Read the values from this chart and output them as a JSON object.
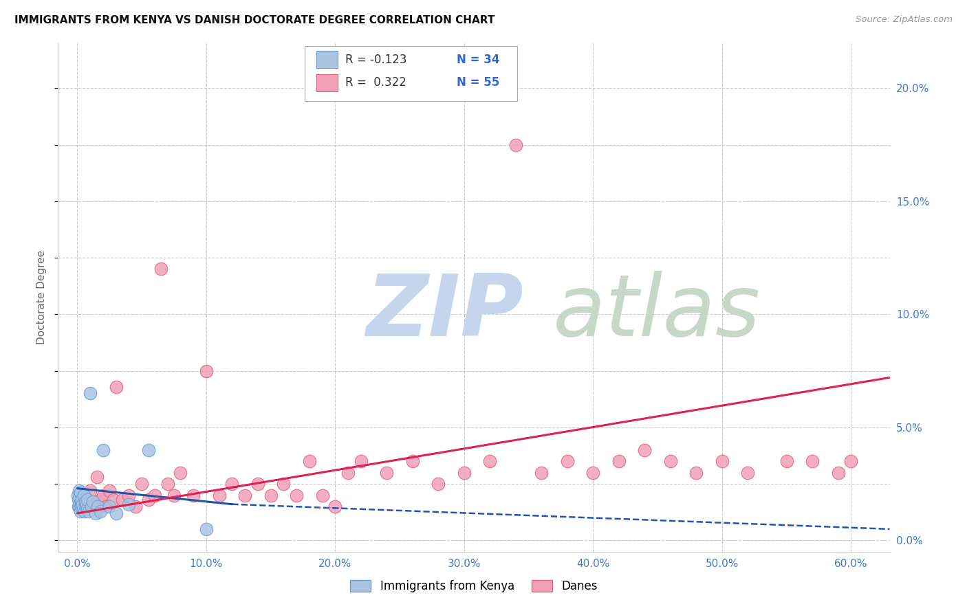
{
  "title": "IMMIGRANTS FROM KENYA VS DANISH DOCTORATE DEGREE CORRELATION CHART",
  "source": "Source: ZipAtlas.com",
  "ylabel": "Doctorate Degree",
  "xlim": [
    -1.5,
    63.0
  ],
  "ylim": [
    -0.5,
    22.0
  ],
  "xticks": [
    0,
    10,
    20,
    30,
    40,
    50,
    60
  ],
  "yticks_right": [
    0,
    5,
    10,
    15,
    20
  ],
  "legend_r1": "R = -0.123",
  "legend_n1": "N = 34",
  "legend_r2": "R =  0.322",
  "legend_n2": "N = 55",
  "kenya_color": "#aac4e0",
  "danes_color": "#f0a0b8",
  "kenya_edge": "#6a9fd8",
  "danes_edge": "#e06080",
  "trend_kenya_color": "#2255aa",
  "trend_danes_color": "#dd2255",
  "watermark_zip": "ZIP",
  "watermark_atlas": "atlas",
  "watermark_color_zip": "#c5d5ee",
  "watermark_color_atlas": "#c8d8c8",
  "kenya_x": [
    0.05,
    0.08,
    0.1,
    0.12,
    0.15,
    0.18,
    0.2,
    0.22,
    0.25,
    0.28,
    0.3,
    0.35,
    0.4,
    0.45,
    0.5,
    0.55,
    0.6,
    0.65,
    0.7,
    0.75,
    0.8,
    0.9,
    1.0,
    1.1,
    1.2,
    1.4,
    1.6,
    1.8,
    2.0,
    2.5,
    3.0,
    4.0,
    5.5,
    10.0
  ],
  "kenya_y": [
    2.0,
    1.5,
    1.8,
    2.2,
    1.6,
    1.4,
    1.9,
    1.3,
    2.1,
    1.7,
    1.5,
    1.8,
    1.6,
    1.4,
    2.0,
    1.3,
    1.7,
    1.5,
    1.6,
    1.4,
    1.8,
    1.3,
    6.5,
    1.5,
    1.7,
    1.2,
    1.5,
    1.3,
    4.0,
    1.5,
    1.2,
    1.6,
    4.0,
    0.5
  ],
  "danes_x": [
    0.2,
    0.5,
    0.8,
    1.0,
    1.2,
    1.5,
    1.8,
    2.0,
    2.2,
    2.5,
    2.8,
    3.0,
    3.5,
    4.0,
    4.5,
    5.0,
    5.5,
    6.0,
    6.5,
    7.0,
    7.5,
    8.0,
    9.0,
    10.0,
    11.0,
    12.0,
    13.0,
    14.0,
    15.0,
    16.0,
    17.0,
    18.0,
    19.0,
    20.0,
    21.0,
    22.0,
    24.0,
    26.0,
    28.0,
    30.0,
    32.0,
    34.0,
    36.0,
    38.0,
    40.0,
    42.0,
    44.0,
    46.0,
    48.0,
    50.0,
    52.0,
    55.0,
    57.0,
    59.0,
    60.0
  ],
  "danes_y": [
    1.5,
    2.0,
    1.8,
    2.2,
    1.5,
    2.8,
    1.8,
    2.0,
    1.5,
    2.2,
    1.8,
    6.8,
    1.8,
    2.0,
    1.5,
    2.5,
    1.8,
    2.0,
    12.0,
    2.5,
    2.0,
    3.0,
    2.0,
    7.5,
    2.0,
    2.5,
    2.0,
    2.5,
    2.0,
    2.5,
    2.0,
    3.5,
    2.0,
    1.5,
    3.0,
    3.5,
    3.0,
    3.5,
    2.5,
    3.0,
    3.5,
    17.5,
    3.0,
    3.5,
    3.0,
    3.5,
    4.0,
    3.5,
    3.0,
    3.5,
    3.0,
    3.5,
    3.5,
    3.0,
    3.5
  ],
  "kenya_trend_x0": 0.0,
  "kenya_trend_x1": 12.0,
  "kenya_trend_y0": 2.3,
  "kenya_trend_y1": 1.6,
  "kenya_dash_x0": 12.0,
  "kenya_dash_x1": 63.0,
  "kenya_dash_y0": 1.6,
  "kenya_dash_y1": 0.5,
  "danes_trend_x0": 0.0,
  "danes_trend_x1": 63.0,
  "danes_trend_y0": 1.2,
  "danes_trend_y1": 7.2
}
